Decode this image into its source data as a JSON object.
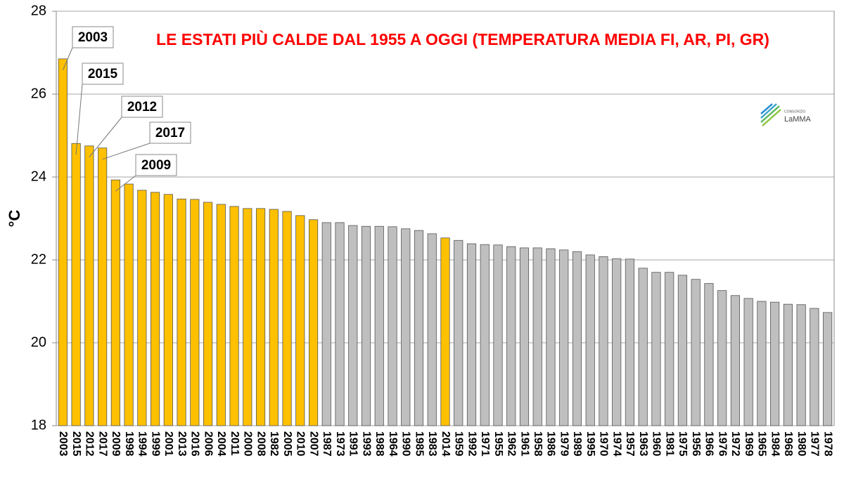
{
  "chart_data": {
    "type": "bar",
    "title": "LE ESTATI PIÙ CALDE DAL 1955 A OGGI (TEMPERATURA MEDIA FI, AR, PI, GR)",
    "y_label": "°C",
    "logo": {
      "small": "CONSORZIO",
      "name": "LaMMA"
    },
    "categories": [
      "2003",
      "2015",
      "2012",
      "2017",
      "2009",
      "1998",
      "1994",
      "1999",
      "2001",
      "2013",
      "2016",
      "2006",
      "2004",
      "2011",
      "2000",
      "2008",
      "1982",
      "2005",
      "2010",
      "2007",
      "1987",
      "1973",
      "1991",
      "1993",
      "1988",
      "1964",
      "1990",
      "1985",
      "1983",
      "2014",
      "1959",
      "1992",
      "1971",
      "1955",
      "1962",
      "1961",
      "1958",
      "1986",
      "1979",
      "1989",
      "1995",
      "1970",
      "1974",
      "1957",
      "1963",
      "1960",
      "1981",
      "1975",
      "1956",
      "1966",
      "1976",
      "1972",
      "1969",
      "1965",
      "1984",
      "1968",
      "1980",
      "1977",
      "1978"
    ],
    "values": [
      26.85,
      24.81,
      24.75,
      24.7,
      23.93,
      23.83,
      23.68,
      23.63,
      23.58,
      23.47,
      23.46,
      23.39,
      23.34,
      23.29,
      23.24,
      23.24,
      23.22,
      23.17,
      23.07,
      22.97,
      22.9,
      22.9,
      22.83,
      22.81,
      22.81,
      22.8,
      22.75,
      22.71,
      22.63,
      22.53,
      22.47,
      22.39,
      22.37,
      22.36,
      22.32,
      22.29,
      22.29,
      22.27,
      22.24,
      22.2,
      22.12,
      22.08,
      22.03,
      22.02,
      21.8,
      21.7,
      21.7,
      21.63,
      21.53,
      21.43,
      21.26,
      21.14,
      21.07,
      21.0,
      20.98,
      20.93,
      20.92,
      20.83,
      20.73
    ],
    "colors": [
      "#ffc000",
      "#ffc000",
      "#ffc000",
      "#ffc000",
      "#ffc000",
      "#ffc000",
      "#ffc000",
      "#ffc000",
      "#ffc000",
      "#ffc000",
      "#ffc000",
      "#ffc000",
      "#ffc000",
      "#ffc000",
      "#ffc000",
      "#ffc000",
      "#ffc000",
      "#ffc000",
      "#ffc000",
      "#ffc000",
      "#bfbfbf",
      "#bfbfbf",
      "#bfbfbf",
      "#bfbfbf",
      "#bfbfbf",
      "#bfbfbf",
      "#bfbfbf",
      "#bfbfbf",
      "#bfbfbf",
      "#ffc000",
      "#bfbfbf",
      "#bfbfbf",
      "#bfbfbf",
      "#bfbfbf",
      "#bfbfbf",
      "#bfbfbf",
      "#bfbfbf",
      "#bfbfbf",
      "#bfbfbf",
      "#bfbfbf",
      "#bfbfbf",
      "#bfbfbf",
      "#bfbfbf",
      "#bfbfbf",
      "#bfbfbf",
      "#bfbfbf",
      "#bfbfbf",
      "#bfbfbf",
      "#bfbfbf",
      "#bfbfbf",
      "#bfbfbf",
      "#bfbfbf",
      "#bfbfbf",
      "#bfbfbf",
      "#bfbfbf",
      "#bfbfbf",
      "#bfbfbf",
      "#bfbfbf",
      "#bfbfbf"
    ],
    "annotations": [
      "2003",
      "2015",
      "2012",
      "2017",
      "2009"
    ],
    "ylim": [
      18,
      28
    ],
    "yticks": [
      18,
      20,
      22,
      24,
      26,
      28
    ],
    "grid": true
  }
}
